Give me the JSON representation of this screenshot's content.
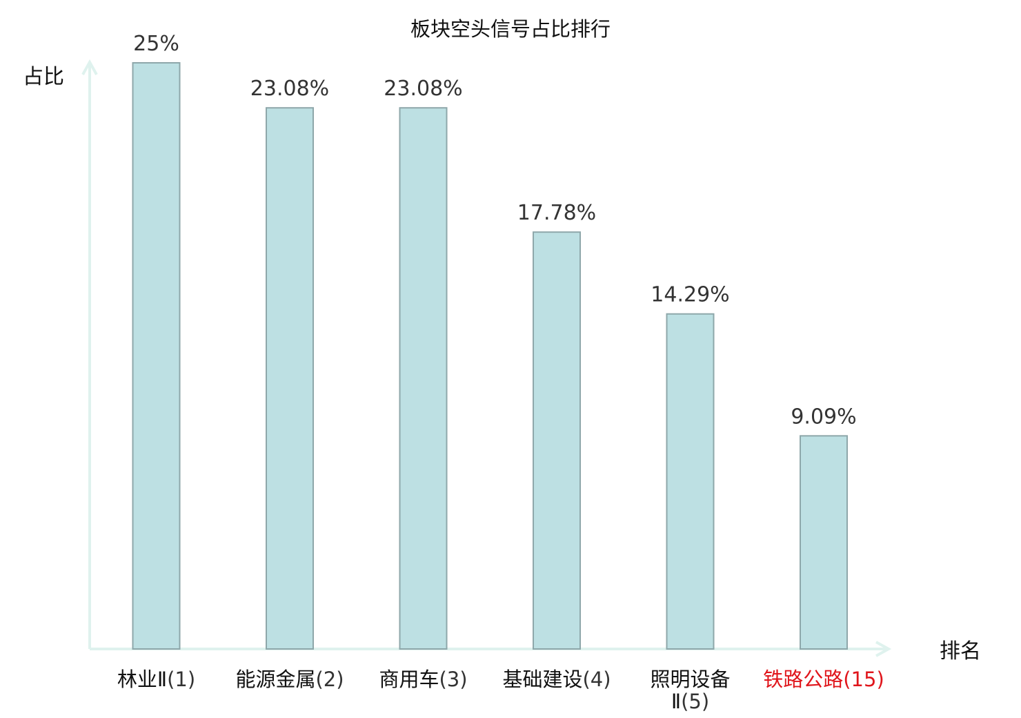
{
  "chart_data": {
    "type": "bar",
    "title": "板块空头信号占比排行",
    "ylabel": "占比",
    "xlabel": "排名",
    "ylim": [
      0,
      25
    ],
    "grid": false,
    "categories": [
      {
        "name": "林业Ⅱ",
        "rank": "(1)"
      },
      {
        "name": "能源金属",
        "rank": "(2)"
      },
      {
        "name": "商用车",
        "rank": "(3)"
      },
      {
        "name": "基础建设",
        "rank": "(4)"
      },
      {
        "name": "照明设备",
        "name_line2": "Ⅱ",
        "rank": "(5)"
      },
      {
        "name": "铁路公路",
        "rank": "(15)",
        "highlight": true
      }
    ],
    "values": [
      25,
      23.08,
      23.08,
      17.78,
      14.29,
      9.09
    ],
    "value_labels": [
      "25%",
      "23.08%",
      "23.08%",
      "17.78%",
      "14.29%",
      "9.09%"
    ]
  },
  "colors": {
    "bar_fill": "#bde0e3",
    "bar_stroke": "#8ea7aa",
    "axis": "#dff2ee",
    "label_text": "#333333",
    "category_text": "#111111",
    "rank_text": "#333333",
    "highlight_text": "#e0161c"
  }
}
